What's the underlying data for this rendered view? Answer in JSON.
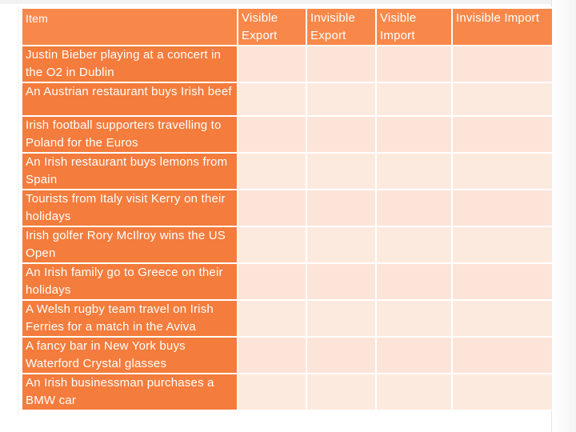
{
  "table": {
    "headers": {
      "item": "Item",
      "col1": "Visible Export",
      "col2": "Invisible Export",
      "col3": "Visible Import",
      "col4": "Invisible Import"
    },
    "rows": [
      {
        "item": "Justin Bieber playing at a concert in the O2 in Dublin"
      },
      {
        "item": "An Austrian restaurant buys Irish beef"
      },
      {
        "item": "Irish football supporters travelling to Poland for the Euros"
      },
      {
        "item": "An Irish restaurant buys lemons from Spain"
      },
      {
        "item": "Tourists from Italy visit Kerry on their holidays"
      },
      {
        "item": "Irish golfer Rory McIlroy wins the US Open"
      },
      {
        "item": "An Irish family go to Greece on their holidays"
      },
      {
        "item": "A Welsh rugby team travel on Irish Ferries for a match in the Aviva"
      },
      {
        "item": "A fancy bar in New York buys Waterford Crystal glasses"
      },
      {
        "item": "An Irish businessman purchases a BMW car"
      }
    ]
  },
  "colors": {
    "header_bg": "#f8884a",
    "item_bg": "#f47c3c",
    "cell_bg": "#fde4d9"
  }
}
